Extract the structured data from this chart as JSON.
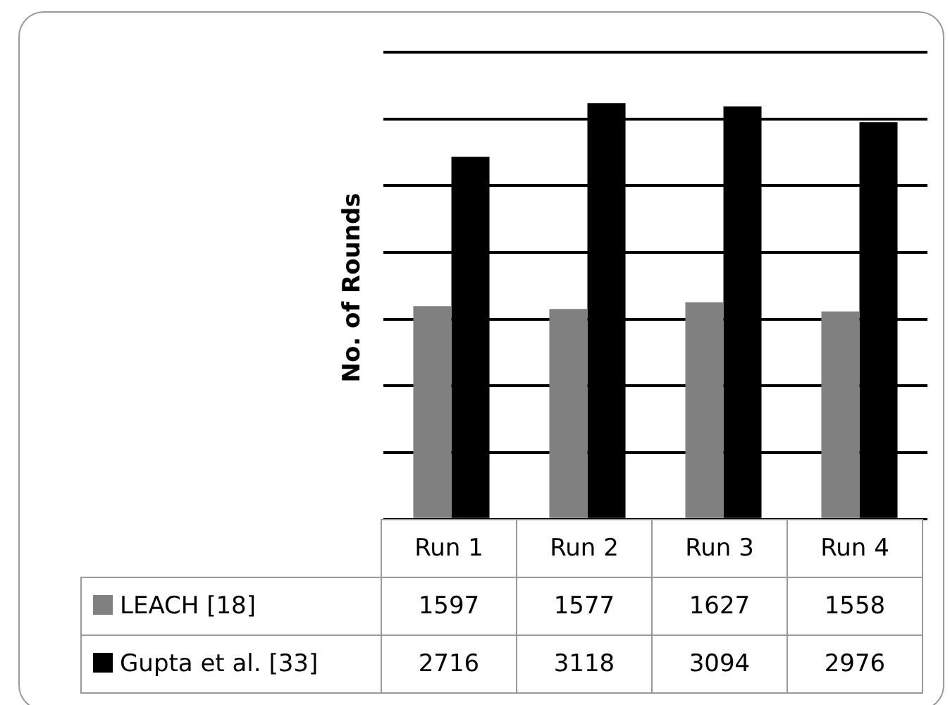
{
  "chart_data": {
    "type": "bar",
    "ylabel": "No. of Rounds",
    "categories": [
      "Run 1",
      "Run 2",
      "Run 3",
      "Run 4"
    ],
    "series": [
      {
        "name": "LEACH [18]",
        "color": "#808080",
        "values": [
          1597,
          1577,
          1627,
          1558
        ]
      },
      {
        "name": "Gupta et al. [33]",
        "color": "#000000",
        "values": [
          2716,
          3118,
          3094,
          2976
        ]
      }
    ],
    "ylim": [
      0,
      3500
    ],
    "yticks": [
      {
        "value": 0,
        "label": null
      },
      {
        "value": 500,
        "label": null
      },
      {
        "value": 1000,
        "label": null
      },
      {
        "value": 1500,
        "label": null
      },
      {
        "value": 2000,
        "label": null
      },
      {
        "value": 2500,
        "label": null
      },
      {
        "value": 3000,
        "label": null
      },
      {
        "value": 3500,
        "label": null
      }
    ],
    "grid": "y",
    "legend": "bottom",
    "data_labels": true,
    "tick_labels": "x"
  }
}
